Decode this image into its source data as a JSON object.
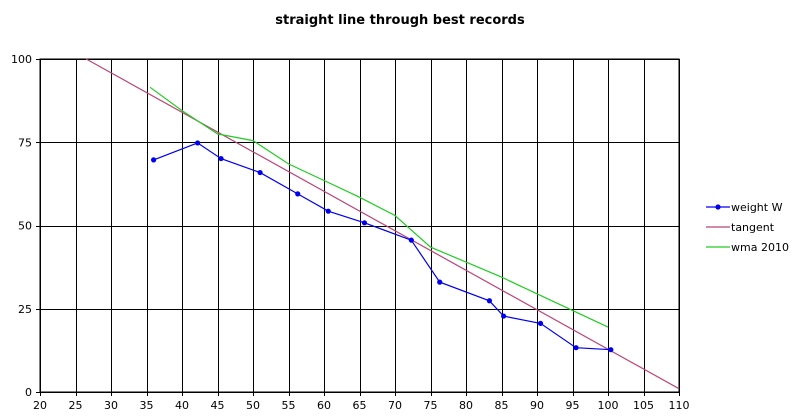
{
  "chart_data": {
    "type": "line",
    "title": "straight line through best records",
    "xlabel": "",
    "ylabel": "",
    "xlim": [
      20,
      110
    ],
    "ylim": [
      0,
      100
    ],
    "x_ticks": [
      20,
      25,
      30,
      35,
      40,
      45,
      50,
      55,
      60,
      65,
      70,
      75,
      80,
      85,
      90,
      95,
      100,
      105,
      110
    ],
    "y_ticks": [
      0,
      25,
      50,
      75,
      100
    ],
    "grid": true,
    "legend_position": "right",
    "series": [
      {
        "name": "weight W",
        "color": "#0000ee",
        "markers": true,
        "x": [
          36,
          42.2,
          45.5,
          51,
          56.3,
          60.6,
          65.7,
          72.3,
          76.3,
          83.3,
          85.3,
          90.5,
          95.5,
          100.4
        ],
        "y": [
          69.7,
          74.8,
          70.1,
          65.9,
          59.5,
          54.3,
          50.8,
          45.6,
          33.0,
          27.4,
          22.8,
          20.6,
          13.3,
          12.7
        ]
      },
      {
        "name": "tangent",
        "color": "#bb4477",
        "markers": false,
        "x": [
          26.5,
          110
        ],
        "y": [
          100,
          1
        ]
      },
      {
        "name": "wma 2010",
        "color": "#22cc22",
        "markers": false,
        "x": [
          35.5,
          40,
          45,
          50,
          55,
          60,
          65,
          70,
          75,
          80,
          85,
          90,
          95,
          100
        ],
        "y": [
          91.5,
          84.5,
          77.5,
          75.5,
          68.5,
          63.5,
          58.5,
          53,
          43.5,
          39,
          34.5,
          29.5,
          24.5,
          19.5
        ]
      }
    ]
  }
}
